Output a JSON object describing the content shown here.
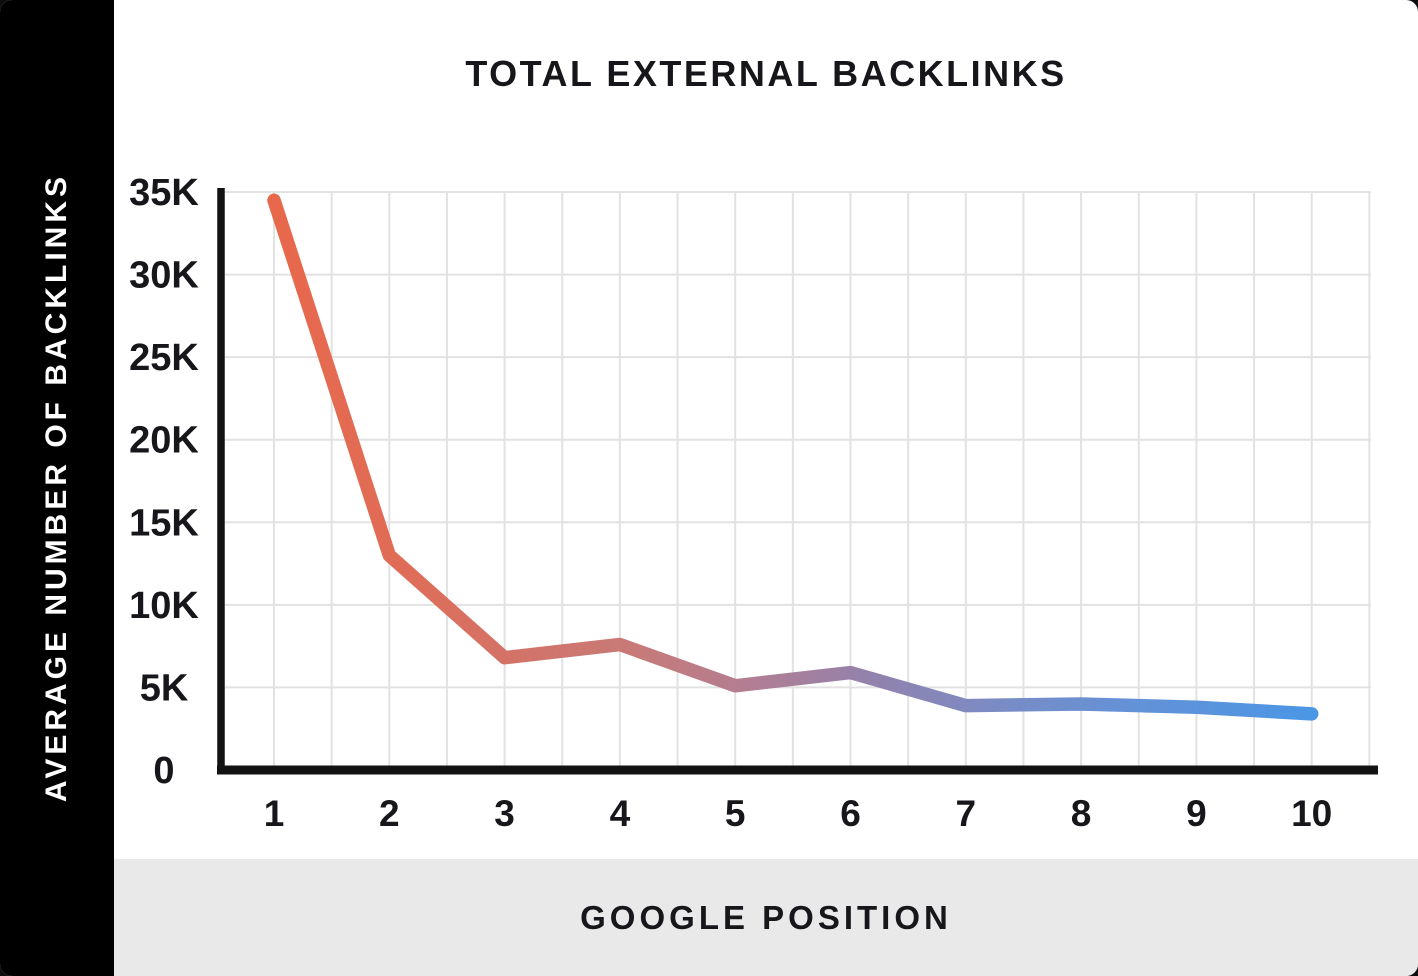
{
  "chart_data": {
    "type": "line",
    "title": "TOTAL EXTERNAL BACKLINKS",
    "xlabel": "GOOGLE POSITION",
    "ylabel": "AVERAGE NUMBER OF BACKLINKS",
    "x": [
      1,
      2,
      3,
      4,
      5,
      6,
      7,
      8,
      9,
      10
    ],
    "values": [
      34500,
      13000,
      6800,
      7600,
      5100,
      5900,
      3900,
      4000,
      3800,
      3400
    ],
    "ylim": [
      0,
      35000
    ],
    "grid": true,
    "legend": "none",
    "y_ticks": [
      {
        "label": "35K",
        "value": 35000
      },
      {
        "label": "30K",
        "value": 30000
      },
      {
        "label": "25K",
        "value": 25000
      },
      {
        "label": "20K",
        "value": 20000
      },
      {
        "label": "15K",
        "value": 15000
      },
      {
        "label": "10K",
        "value": 10000
      },
      {
        "label": "5K",
        "value": 5000
      },
      {
        "label": "0",
        "value": 0
      }
    ],
    "x_ticks": [
      {
        "label": "1",
        "value": 1
      },
      {
        "label": "2",
        "value": 2
      },
      {
        "label": "3",
        "value": 3
      },
      {
        "label": "4",
        "value": 4
      },
      {
        "label": "5",
        "value": 5
      },
      {
        "label": "6",
        "value": 6
      },
      {
        "label": "7",
        "value": 7
      },
      {
        "label": "8",
        "value": 8
      },
      {
        "label": "9",
        "value": 9
      },
      {
        "label": "10",
        "value": 10
      }
    ],
    "gradient_stops": [
      {
        "offset": 0,
        "color": "#E8684C"
      },
      {
        "offset": 0.12,
        "color": "#E06C57"
      },
      {
        "offset": 0.23,
        "color": "#D37368"
      },
      {
        "offset": 0.35,
        "color": "#C77A79"
      },
      {
        "offset": 0.46,
        "color": "#B27E93"
      },
      {
        "offset": 0.58,
        "color": "#9182AE"
      },
      {
        "offset": 0.69,
        "color": "#7C8BC3"
      },
      {
        "offset": 0.81,
        "color": "#6691D5"
      },
      {
        "offset": 1,
        "color": "#4B96E5"
      }
    ]
  },
  "colors": {
    "sidebar_bg": "#000000",
    "sidebar_text": "#FFFFFF",
    "chart_bg": "#FFFFFF",
    "footer_bg": "#E9E9E9",
    "grid": "#E2E2E2",
    "axis": "#121212",
    "text": "#17171B"
  }
}
